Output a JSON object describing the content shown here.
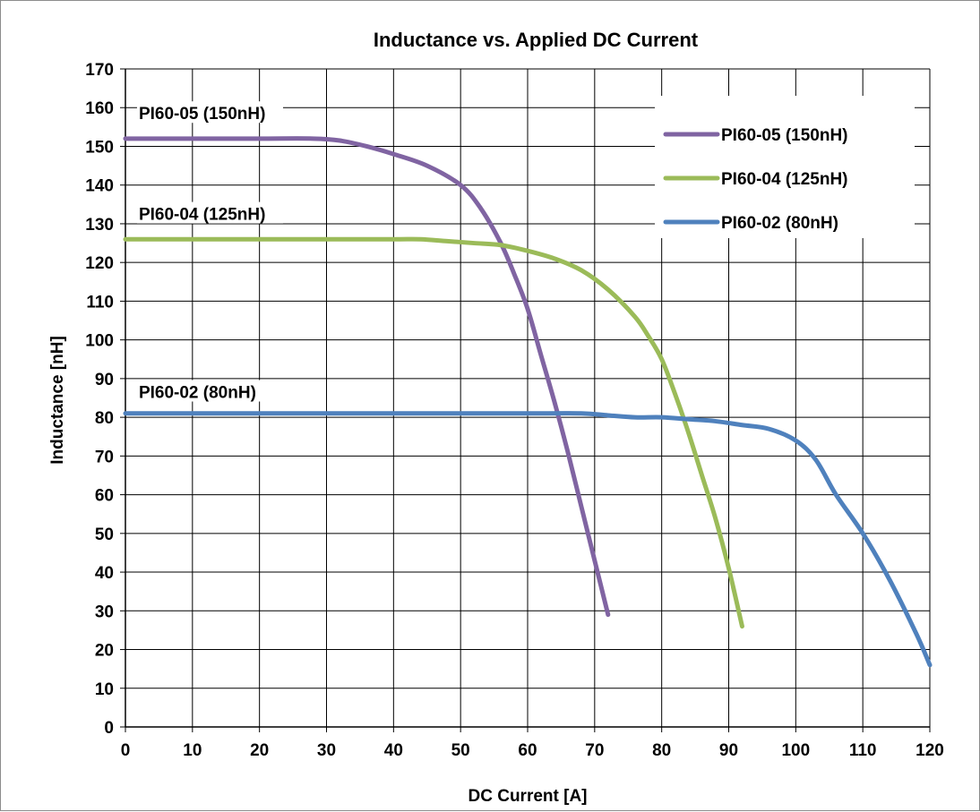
{
  "chart_data": {
    "type": "line",
    "title": "Inductance vs. Applied DC Current",
    "xlabel": "DC Current [A]",
    "ylabel": "Inductance [nH]",
    "xlim": [
      0,
      120
    ],
    "ylim": [
      0,
      170
    ],
    "xticks": [
      0,
      10,
      20,
      30,
      40,
      50,
      60,
      70,
      80,
      90,
      100,
      110,
      120
    ],
    "yticks": [
      0,
      10,
      20,
      30,
      40,
      50,
      60,
      70,
      80,
      90,
      100,
      110,
      120,
      130,
      140,
      150,
      160,
      170
    ],
    "grid": true,
    "legend_position": "top-right",
    "series": [
      {
        "name": "PI60-05 (150nH)",
        "color": "#8064a2",
        "x": [
          0,
          10,
          20,
          28,
          32,
          36,
          40,
          45,
          50,
          53,
          56,
          58,
          60,
          62,
          64,
          66,
          68,
          70,
          72
        ],
        "y": [
          152,
          152,
          152,
          152,
          151.5,
          150,
          148,
          145,
          140,
          134,
          125,
          117,
          108,
          96,
          84,
          71,
          57,
          43,
          29
        ]
      },
      {
        "name": "PI60-04 (125nH)",
        "color": "#9bbb59",
        "x": [
          0,
          10,
          20,
          30,
          40,
          44,
          48,
          52,
          56,
          60,
          64,
          68,
          72,
          76,
          78,
          80,
          82,
          84,
          86,
          88,
          90,
          92
        ],
        "y": [
          126,
          126,
          126,
          126,
          126,
          126,
          125.5,
          125,
          124.5,
          123,
          121,
          118,
          113,
          106,
          101,
          95,
          86,
          76,
          65,
          54,
          41,
          26
        ]
      },
      {
        "name": "PI60-02 (80nH)",
        "color": "#4f81bd",
        "x": [
          0,
          10,
          20,
          30,
          40,
          50,
          60,
          68,
          72,
          76,
          80,
          84,
          88,
          92,
          96,
          100,
          103,
          106,
          110,
          114,
          118,
          120
        ],
        "y": [
          81,
          81,
          81,
          81,
          81,
          81,
          81,
          81,
          80.5,
          80,
          80,
          79.5,
          79,
          78,
          77,
          74,
          69,
          60,
          50,
          38,
          24,
          16
        ]
      }
    ],
    "annotations": [
      {
        "text": "PI60-05 (150nH)",
        "x": 2,
        "y": 157
      },
      {
        "text": "PI60-04 (125nH)",
        "x": 2,
        "y": 131
      },
      {
        "text": "PI60-02 (80nH)",
        "x": 2,
        "y": 85
      }
    ]
  }
}
